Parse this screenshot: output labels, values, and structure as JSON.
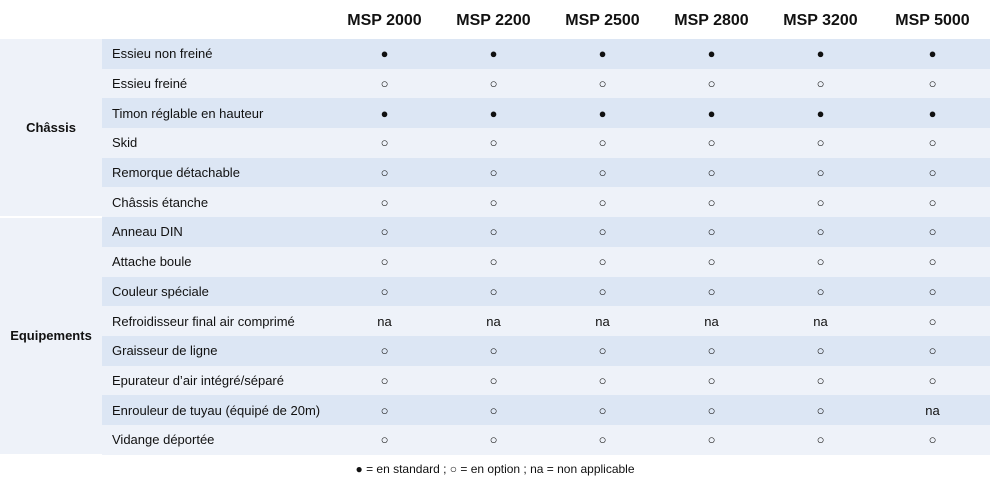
{
  "columns": [
    "MSP 2000",
    "MSP 2200",
    "MSP 2500",
    "MSP 2800",
    "MSP 3200",
    "MSP 5000"
  ],
  "groups": [
    {
      "name": "Châssis",
      "rows": [
        {
          "feature": "Essieu non freiné",
          "values": [
            "●",
            "●",
            "●",
            "●",
            "●",
            "●"
          ]
        },
        {
          "feature": "Essieu freiné",
          "values": [
            "○",
            "○",
            "○",
            "○",
            "○",
            "○"
          ]
        },
        {
          "feature": "Timon réglable en hauteur",
          "values": [
            "●",
            "●",
            "●",
            "●",
            "●",
            "●"
          ]
        },
        {
          "feature": "Skid",
          "values": [
            "○",
            "○",
            "○",
            "○",
            "○",
            "○"
          ]
        },
        {
          "feature": "Remorque détachable",
          "values": [
            "○",
            "○",
            "○",
            "○",
            "○",
            "○"
          ]
        },
        {
          "feature": "Châssis étanche",
          "values": [
            "○",
            "○",
            "○",
            "○",
            "○",
            "○"
          ]
        }
      ]
    },
    {
      "name": "Equipements",
      "rows": [
        {
          "feature": "Anneau DIN",
          "values": [
            "○",
            "○",
            "○",
            "○",
            "○",
            "○"
          ]
        },
        {
          "feature": "Attache boule",
          "values": [
            "○",
            "○",
            "○",
            "○",
            "○",
            "○"
          ]
        },
        {
          "feature": "Couleur spéciale",
          "values": [
            "○",
            "○",
            "○",
            "○",
            "○",
            "○"
          ]
        },
        {
          "feature": "Refroidisseur final air comprimé",
          "values": [
            "na",
            "na",
            "na",
            "na",
            "na",
            "○"
          ]
        },
        {
          "feature": "Graisseur de ligne",
          "values": [
            "○",
            "○",
            "○",
            "○",
            "○",
            "○"
          ]
        },
        {
          "feature": "Epurateur d’air intégré/séparé",
          "values": [
            "○",
            "○",
            "○",
            "○",
            "○",
            "○"
          ]
        },
        {
          "feature": "Enrouleur de tuyau (équipé de 20m)",
          "values": [
            "○",
            "○",
            "○",
            "○",
            "○",
            "na"
          ]
        },
        {
          "feature": "Vidange déportée",
          "values": [
            "○",
            "○",
            "○",
            "○",
            "○",
            "○"
          ]
        }
      ]
    }
  ],
  "legend": "● = en standard ; ○ = en option ; na = non applicable"
}
